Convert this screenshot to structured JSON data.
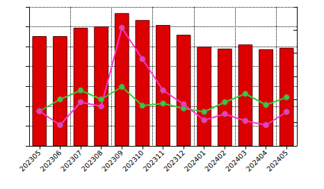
{
  "chart_data": {
    "type": "bar",
    "categories": [
      "202305",
      "202306",
      "202307",
      "202308",
      "202309",
      "202310",
      "202311",
      "202312",
      "202401",
      "202402",
      "202403",
      "202404",
      "202405"
    ],
    "values": [
      5.53,
      5.53,
      5.95,
      6.02,
      6.69,
      6.34,
      6.09,
      5.6,
      5.0,
      4.9,
      5.11,
      4.87,
      4.94
    ],
    "color": "#dd0000",
    "ylim": [
      0,
      7
    ],
    "yticks": [
      0,
      1,
      2,
      3,
      4,
      5,
      6,
      7
    ],
    "y2lim": [
      0,
      6
    ],
    "y2ticks": [
      0,
      1,
      2,
      3,
      4,
      5,
      6
    ],
    "grid": true,
    "tick_labels": "x",
    "series": [
      {
        "type": "line",
        "axis": "y2",
        "color": "#33cc33",
        "marker": "circle",
        "values": [
          1.5,
          2.01,
          2.4,
          2.01,
          2.55,
          1.74,
          1.83,
          1.62,
          1.47,
          1.89,
          2.25,
          1.77,
          2.1
        ]
      },
      {
        "type": "line",
        "axis": "y2",
        "color": "#ff33cc",
        "marker": "circle",
        "values": [
          1.5,
          0.9,
          1.89,
          1.71,
          5.1,
          3.75,
          2.4,
          1.8,
          1.11,
          1.38,
          1.08,
          0.9,
          1.47
        ]
      }
    ]
  }
}
